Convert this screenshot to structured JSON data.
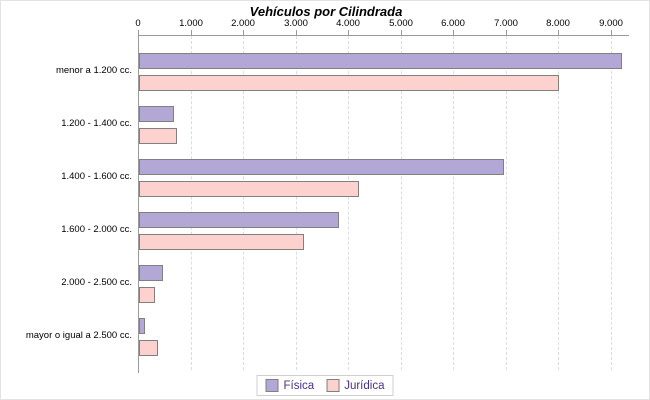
{
  "chart_data": {
    "type": "bar",
    "orientation": "horizontal",
    "title": "Vehículos por Cilindrada",
    "categories": [
      "menor a 1.200 cc.",
      "1.200 - 1.400 cc.",
      "1.400 - 1.600 cc.",
      "1.600 - 2.000 cc.",
      "2.000 - 2.500 cc.",
      "mayor o igual a 2.500 cc."
    ],
    "series": [
      {
        "name": "Física",
        "color": "#b3a8d5",
        "values": [
          9200,
          670,
          6950,
          3800,
          460,
          120
        ]
      },
      {
        "name": "Jurídica",
        "color": "#fdd1ce",
        "values": [
          8000,
          730,
          4180,
          3150,
          310,
          360
        ]
      }
    ],
    "x_axis": {
      "position": "top",
      "ticks": [
        0,
        1000,
        2000,
        3000,
        4000,
        5000,
        6000,
        7000,
        8000,
        9000
      ],
      "tick_labels": [
        "0",
        "1.000",
        "2.000",
        "3.000",
        "4.000",
        "5.000",
        "6.000",
        "7.000",
        "8.000",
        "9.000"
      ],
      "max": 9330,
      "grid": true
    },
    "legend": {
      "position": "bottom",
      "entries": [
        "Física",
        "Jurídica"
      ]
    },
    "colors": {
      "bar_border": "#808080",
      "axis_line": "#9a9a9a",
      "gridline": "#dcdcdc",
      "legend_text": "#4a2f87",
      "legend_border": "#d0d0d0",
      "title_text": "#000000",
      "background": "#ffffff"
    }
  }
}
